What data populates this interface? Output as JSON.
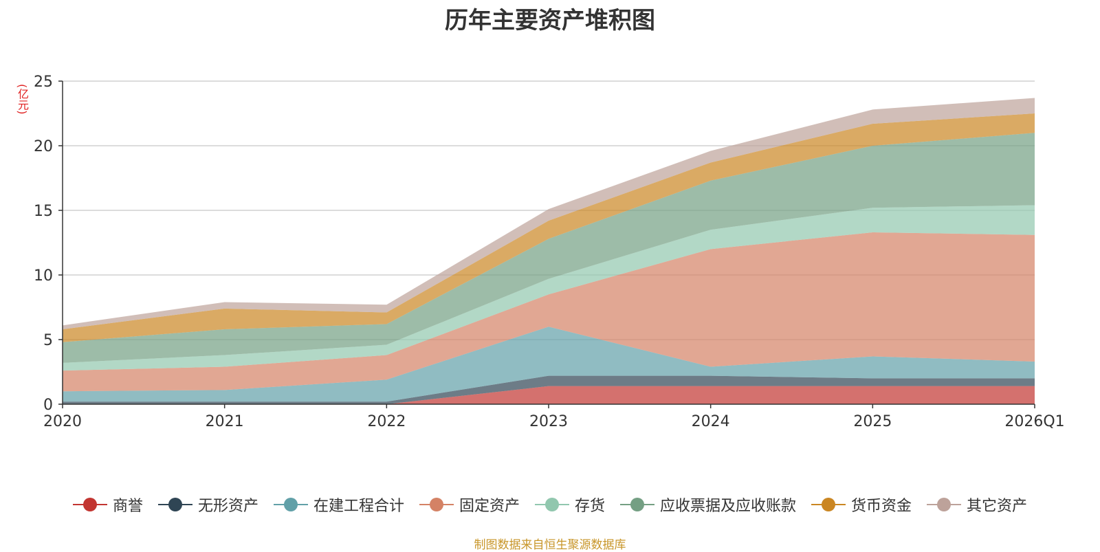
{
  "chart_data": {
    "type": "area",
    "title": "历年主要资产堆积图",
    "ylabel": "(亿元)",
    "ylim": [
      0,
      25
    ],
    "yticks": [
      "0",
      "5",
      "10",
      "15",
      "20",
      "25"
    ],
    "categories": [
      "2020",
      "2021",
      "2022",
      "2023",
      "2024",
      "2025",
      "2026Q1"
    ],
    "stacked": true,
    "series": [
      {
        "name": "商誉",
        "color": "#c23531",
        "values": [
          0,
          0,
          0,
          1.4,
          1.4,
          1.4,
          1.4
        ]
      },
      {
        "name": "无形资产",
        "color": "#2f4554",
        "values": [
          0.2,
          0.2,
          0.2,
          0.8,
          0.8,
          0.6,
          0.6
        ]
      },
      {
        "name": "在建工程合计",
        "color": "#61a0a8",
        "values": [
          0.8,
          0.9,
          1.7,
          3.8,
          0.7,
          1.7,
          1.3
        ]
      },
      {
        "name": "固定资产",
        "color": "#d48265",
        "values": [
          1.6,
          1.8,
          1.9,
          2.5,
          9.1,
          9.6,
          9.8
        ]
      },
      {
        "name": "存货",
        "color": "#91c7ae",
        "values": [
          0.6,
          0.9,
          0.8,
          1.2,
          1.5,
          1.9,
          2.3
        ]
      },
      {
        "name": "应收票据及应收账款",
        "color": "#749f83",
        "values": [
          1.6,
          2.0,
          1.6,
          3.1,
          3.8,
          4.8,
          5.6
        ]
      },
      {
        "name": "货币资金",
        "color": "#ca8622",
        "values": [
          1.0,
          1.6,
          0.9,
          1.4,
          1.4,
          1.7,
          1.5
        ]
      },
      {
        "name": "其它资产",
        "color": "#bda29a",
        "values": [
          0.3,
          0.5,
          0.6,
          0.9,
          0.9,
          1.1,
          1.2
        ]
      }
    ],
    "legend_position": "bottom",
    "grid": true
  },
  "footer": {
    "source": "制图数据来自恒生聚源数据库"
  }
}
